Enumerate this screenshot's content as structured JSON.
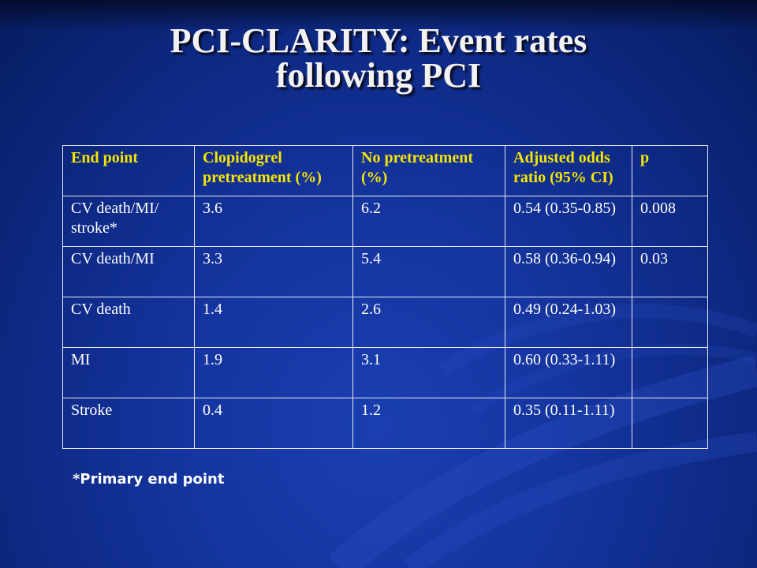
{
  "slide": {
    "title_line1": "PCI-CLARITY: Event rates",
    "title_line2": "following PCI",
    "footnote": "*Primary end point",
    "colors": {
      "background": "#1535a0",
      "header_text": "#f6e600",
      "body_text": "#ffffff",
      "table_border": "#e8e8f0"
    }
  },
  "table": {
    "headers": [
      "End point",
      "Clopidogrel pretreatment (%)",
      "No pretreatment (%)",
      "Adjusted odds ratio (95% CI)",
      "p"
    ],
    "rows": [
      [
        "CV death/MI/ stroke*",
        "3.6",
        "6.2",
        "0.54 (0.35-0.85)",
        "0.008"
      ],
      [
        "CV death/MI",
        "3.3",
        "5.4",
        "0.58 (0.36-0.94)",
        "0.03"
      ],
      [
        "CV death",
        "1.4",
        "2.6",
        "0.49 (0.24-1.03)",
        ""
      ],
      [
        "MI",
        "1.9",
        "3.1",
        "0.60 (0.33-1.11)",
        ""
      ],
      [
        "Stroke",
        "0.4",
        "1.2",
        "0.35 (0.11-1.11)",
        ""
      ]
    ]
  }
}
